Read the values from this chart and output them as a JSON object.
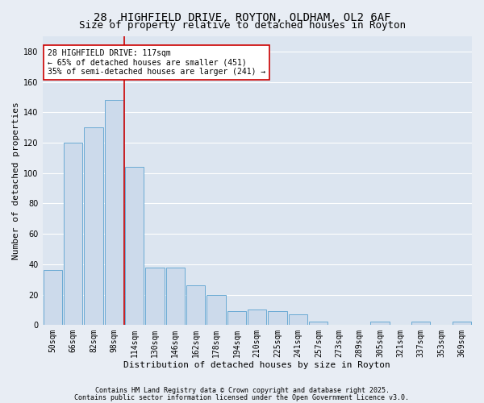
{
  "title_line1": "28, HIGHFIELD DRIVE, ROYTON, OLDHAM, OL2 6AF",
  "title_line2": "Size of property relative to detached houses in Royton",
  "xlabel": "Distribution of detached houses by size in Royton",
  "ylabel": "Number of detached properties",
  "categories": [
    "50sqm",
    "66sqm",
    "82sqm",
    "98sqm",
    "114sqm",
    "130sqm",
    "146sqm",
    "162sqm",
    "178sqm",
    "194sqm",
    "210sqm",
    "225sqm",
    "241sqm",
    "257sqm",
    "273sqm",
    "289sqm",
    "305sqm",
    "321sqm",
    "337sqm",
    "353sqm",
    "369sqm"
  ],
  "values": [
    36,
    120,
    130,
    148,
    104,
    38,
    38,
    26,
    20,
    9,
    10,
    9,
    7,
    2,
    0,
    0,
    2,
    0,
    2,
    0,
    2
  ],
  "bar_color": "#ccdaeb",
  "bar_edge_color": "#6aaad4",
  "vline_position": 3.5,
  "vline_color": "#cc0000",
  "annotation_text": "28 HIGHFIELD DRIVE: 117sqm\n← 65% of detached houses are smaller (451)\n35% of semi-detached houses are larger (241) →",
  "annotation_box_facecolor": "#ffffff",
  "annotation_box_edgecolor": "#cc0000",
  "fig_facecolor": "#e8edf4",
  "axes_facecolor": "#dce5f0",
  "ylim": [
    0,
    190
  ],
  "yticks": [
    0,
    20,
    40,
    60,
    80,
    100,
    120,
    140,
    160,
    180
  ],
  "grid_color": "#ffffff",
  "grid_linewidth": 0.8,
  "title_fontsize": 10,
  "subtitle_fontsize": 9,
  "axis_label_fontsize": 8,
  "tick_fontsize": 7,
  "annotation_fontsize": 7,
  "footer_line1": "Contains HM Land Registry data © Crown copyright and database right 2025.",
  "footer_line2": "Contains public sector information licensed under the Open Government Licence v3.0.",
  "footer_fontsize": 6
}
